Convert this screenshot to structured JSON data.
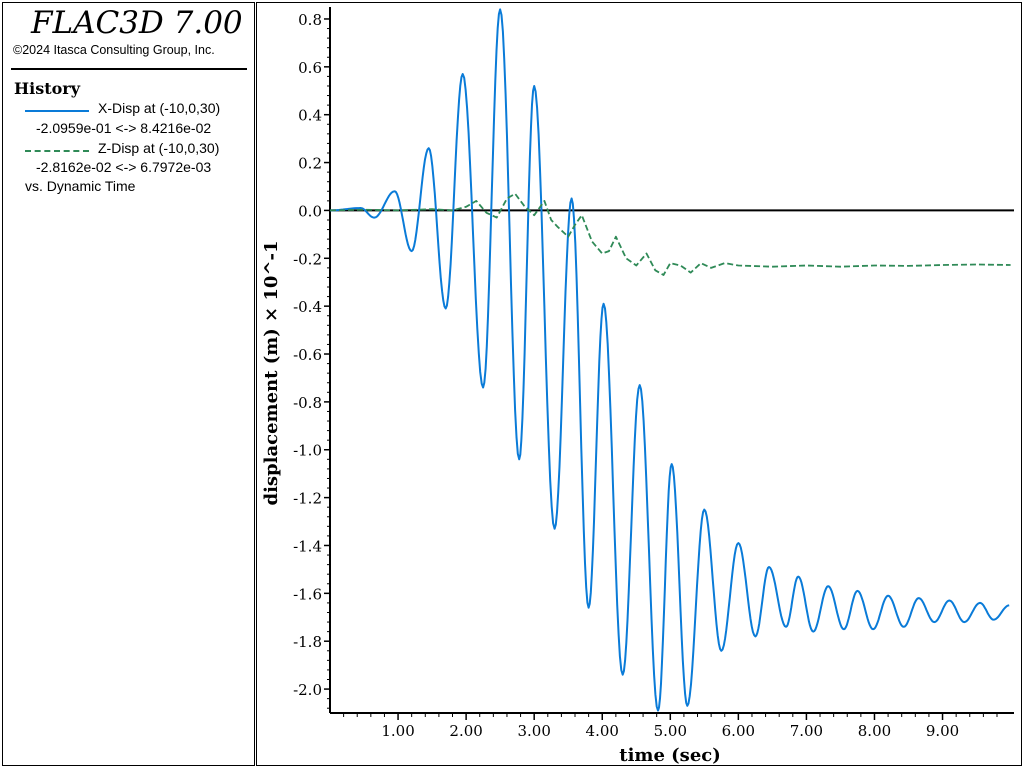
{
  "app": {
    "title": "FLAC3D 7.00",
    "copyright": "©2024 Itasca Consulting Group, Inc."
  },
  "legend": {
    "section_title": "History",
    "items": [
      {
        "label": "X-Disp at (-10,0,30)",
        "range": "-2.0959e-01 <->  8.4216e-02",
        "style": "solid",
        "color": "#0a7bd8"
      },
      {
        "label": "Z-Disp at (-10,0,30)",
        "range": "-2.8162e-02 <->  6.7972e-03",
        "style": "dashed",
        "color": "#2f8a57"
      }
    ],
    "footer": "vs. Dynamic Time"
  },
  "chart_data": {
    "type": "line",
    "title": "",
    "xlabel": "time (sec)",
    "ylabel": "displacement (m) × 10^-1",
    "xlim": [
      0,
      10.05
    ],
    "ylim": [
      -2.1,
      0.85
    ],
    "xticks": [
      1,
      2,
      3,
      4,
      5,
      6,
      7,
      8,
      9
    ],
    "xtick_labels": [
      "1.00",
      "2.00",
      "3.00",
      "4.00",
      "5.00",
      "6.00",
      "7.00",
      "8.00",
      "9.00"
    ],
    "yticks": [
      0.8,
      0.6,
      0.4,
      0.2,
      0.0,
      -0.2,
      -0.4,
      -0.6,
      -0.8,
      -1.0,
      -1.2,
      -1.4,
      -1.6,
      -1.8,
      -2.0
    ],
    "ytick_labels": [
      "0.8",
      "0.6",
      "0.4",
      "0.2",
      "0.0",
      "-0.2",
      "-0.4",
      "-0.6",
      "-0.8",
      "-1.0",
      "-1.2",
      "-1.4",
      "-1.6",
      "-1.8",
      "-2.0"
    ],
    "zero_line": true,
    "grid": false,
    "series": [
      {
        "name": "X-Disp at (-10,0,30)",
        "color": "#0a7bd8",
        "style": "solid",
        "x": [
          0.0,
          0.45,
          0.65,
          0.95,
          1.2,
          1.45,
          1.7,
          1.95,
          2.25,
          2.5,
          2.78,
          3.0,
          3.3,
          3.55,
          3.8,
          4.02,
          4.3,
          4.55,
          4.82,
          5.02,
          5.25,
          5.5,
          5.75,
          6.0,
          6.25,
          6.45,
          6.7,
          6.88,
          7.1,
          7.32,
          7.55,
          7.75,
          7.98,
          8.2,
          8.43,
          8.65,
          8.88,
          9.1,
          9.32,
          9.55,
          9.75,
          9.98
        ],
        "y": [
          0.0,
          0.01,
          -0.03,
          0.08,
          -0.17,
          0.26,
          -0.41,
          0.57,
          -0.74,
          0.84,
          -1.04,
          0.52,
          -1.33,
          0.05,
          -1.66,
          -0.39,
          -1.94,
          -0.73,
          -2.09,
          -1.06,
          -2.07,
          -1.25,
          -1.84,
          -1.39,
          -1.78,
          -1.49,
          -1.74,
          -1.53,
          -1.76,
          -1.57,
          -1.75,
          -1.59,
          -1.75,
          -1.61,
          -1.74,
          -1.62,
          -1.72,
          -1.63,
          -1.72,
          -1.64,
          -1.71,
          -1.65
        ]
      },
      {
        "name": "Z-Disp at (-10,0,30)",
        "color": "#2f8a57",
        "style": "dashed",
        "x": [
          0.0,
          0.5,
          1.0,
          1.5,
          1.8,
          2.0,
          2.15,
          2.3,
          2.45,
          2.6,
          2.72,
          2.85,
          3.0,
          3.15,
          3.25,
          3.35,
          3.5,
          3.6,
          3.7,
          3.85,
          4.0,
          4.1,
          4.2,
          4.35,
          4.5,
          4.65,
          4.78,
          4.9,
          5.0,
          5.15,
          5.3,
          5.45,
          5.6,
          5.8,
          6.0,
          6.5,
          7.0,
          7.5,
          8.0,
          8.5,
          9.0,
          9.5,
          10.0
        ],
        "y": [
          0.0,
          0.003,
          0.0,
          0.005,
          0.0,
          0.015,
          0.04,
          -0.01,
          -0.03,
          0.05,
          0.07,
          0.02,
          -0.02,
          0.04,
          -0.04,
          -0.07,
          -0.11,
          -0.06,
          -0.02,
          -0.13,
          -0.18,
          -0.17,
          -0.11,
          -0.2,
          -0.23,
          -0.18,
          -0.25,
          -0.27,
          -0.22,
          -0.23,
          -0.26,
          -0.22,
          -0.24,
          -0.22,
          -0.23,
          -0.235,
          -0.23,
          -0.235,
          -0.23,
          -0.232,
          -0.228,
          -0.226,
          -0.228
        ]
      }
    ]
  }
}
